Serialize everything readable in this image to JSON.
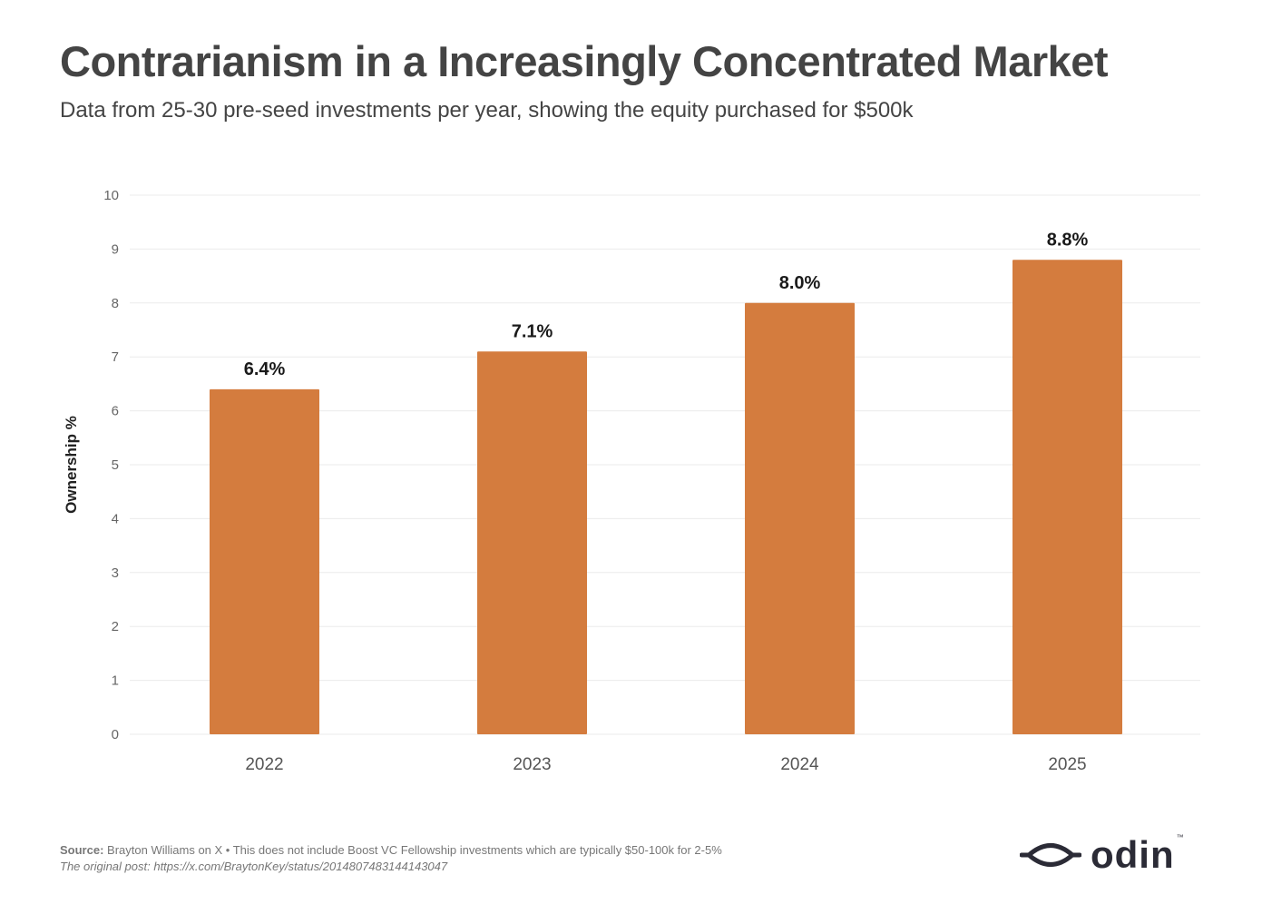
{
  "title": "Contrarianism in a Increasingly Concentrated Market",
  "subtitle": "Data from 25-30 pre-seed investments per year, showing the equity purchased for $500k",
  "chart_data": {
    "type": "bar",
    "categories": [
      "2022",
      "2023",
      "2024",
      "2025"
    ],
    "values": [
      6.4,
      7.1,
      8.0,
      8.8
    ],
    "data_labels": [
      "6.4%",
      "7.1%",
      "8.0%",
      "8.8%"
    ],
    "ylabel": "Ownership %",
    "xlabel": "",
    "ylim": [
      0,
      10
    ],
    "yticks": [
      0,
      1,
      2,
      3,
      4,
      5,
      6,
      7,
      8,
      9,
      10
    ],
    "grid": true,
    "bar_color": "#d47c3e"
  },
  "footer": {
    "source_label": "Source:",
    "source_text": "Brayton Williams on X • This does not include Boost VC Fellowship investments which are typically $50-100k for 2-5%",
    "original_post": "The original post: https://x.com/BraytonKey/status/2014807483144143047"
  },
  "logo": {
    "wordmark": "odin",
    "tm": "™",
    "icon": "eye-icon"
  }
}
